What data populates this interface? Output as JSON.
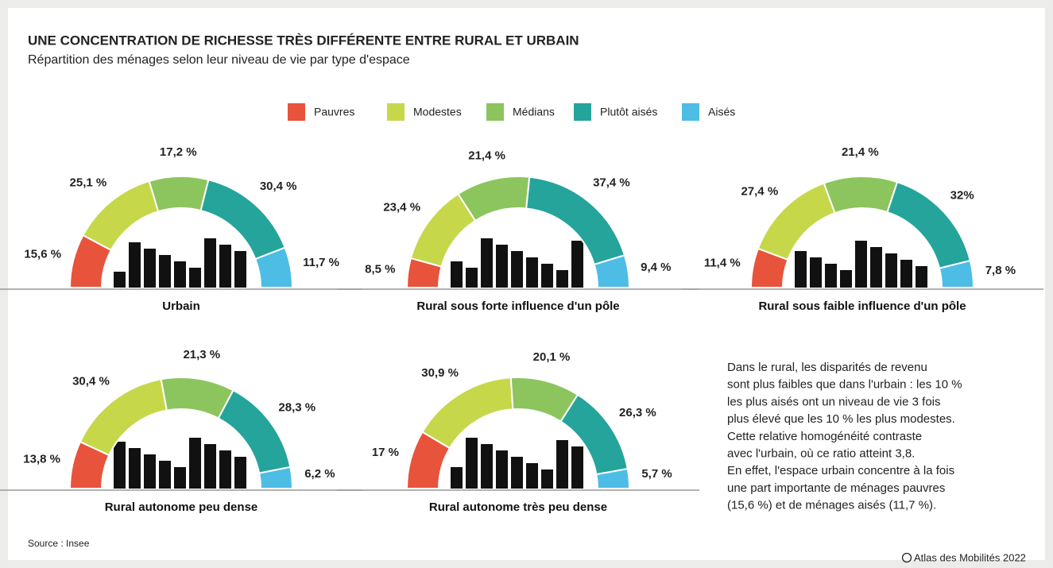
{
  "header": {
    "title": "UNE CONCENTRATION DE RICHESSE TRÈS DIFFÉRENTE ENTRE RURAL ET URBAIN",
    "subtitle": "Répartition des ménages selon leur niveau de vie par type d'espace"
  },
  "chart_data": [
    {
      "type": "semidonut",
      "title": "Urbain",
      "categories": [
        "Pauvres",
        "Modestes",
        "Médians",
        "Plutôt aisés",
        "Aisés"
      ],
      "colors": [
        "#e8533b",
        "#c6d84a",
        "#8cc55e",
        "#25a49b",
        "#4dbde6"
      ],
      "values": [
        15.6,
        25.1,
        17.2,
        30.4,
        11.7
      ],
      "value_labels": [
        "15,6 %",
        "25,1 %",
        "17,2 %",
        "30,4 %",
        "11,7 %"
      ]
    },
    {
      "type": "semidonut",
      "title": "Rural sous forte influence d'un pôle",
      "categories": [
        "Pauvres",
        "Modestes",
        "Médians",
        "Plutôt aisés",
        "Aisés"
      ],
      "colors": [
        "#e8533b",
        "#c6d84a",
        "#8cc55e",
        "#25a49b",
        "#4dbde6"
      ],
      "values": [
        8.5,
        23.4,
        21.4,
        37.4,
        9.4
      ],
      "value_labels": [
        "8,5 %",
        "23,4 %",
        "21,4 %",
        "37,4 %",
        "9,4 %"
      ]
    },
    {
      "type": "semidonut",
      "title": "Rural sous faible influence d'un pôle",
      "categories": [
        "Pauvres",
        "Modestes",
        "Médians",
        "Plutôt aisés",
        "Aisés"
      ],
      "colors": [
        "#e8533b",
        "#c6d84a",
        "#8cc55e",
        "#25a49b",
        "#4dbde6"
      ],
      "values": [
        11.4,
        27.4,
        21.4,
        32,
        7.8
      ],
      "value_labels": [
        "11,4 %",
        "27,4 %",
        "21,4 %",
        "32%",
        "7,8 %"
      ]
    },
    {
      "type": "semidonut",
      "title": "Rural autonome peu dense",
      "categories": [
        "Pauvres",
        "Modestes",
        "Médians",
        "Plutôt aisés",
        "Aisés"
      ],
      "colors": [
        "#e8533b",
        "#c6d84a",
        "#8cc55e",
        "#25a49b",
        "#4dbde6"
      ],
      "values": [
        13.8,
        30.4,
        21.3,
        28.3,
        6.2
      ],
      "value_labels": [
        "13,8 %",
        "30,4 %",
        "21,3 %",
        "28,3 %",
        "6,2 %"
      ]
    },
    {
      "type": "semidonut",
      "title": "Rural autonome très peu dense",
      "categories": [
        "Pauvres",
        "Modestes",
        "Médians",
        "Plutôt aisés",
        "Aisés"
      ],
      "colors": [
        "#e8533b",
        "#c6d84a",
        "#8cc55e",
        "#25a49b",
        "#4dbde6"
      ],
      "values": [
        17,
        30.9,
        20.1,
        26.3,
        5.7
      ],
      "value_labels": [
        "17 %",
        "30,9 %",
        "20,1 %",
        "26,3 %",
        "5,7 %"
      ]
    }
  ],
  "note": [
    "Dans le rural, les disparités de revenu",
    "sont plus faibles que dans l'urbain : les 10 %",
    "les plus aisés ont un niveau de vie 3 fois",
    "plus élevé que les 10 % les plus modestes.",
    "Cette relative homogénéité contraste",
    "avec l'urbain, où ce ratio atteint 3,8.",
    "En effet, l'espace urbain concentre à la fois",
    "une part importante de ménages pauvres",
    "(15,6 %) et de ménages aisés (11,7 %)."
  ],
  "source": "Source : Insee",
  "credit": "Atlas des Mobilités 2022"
}
